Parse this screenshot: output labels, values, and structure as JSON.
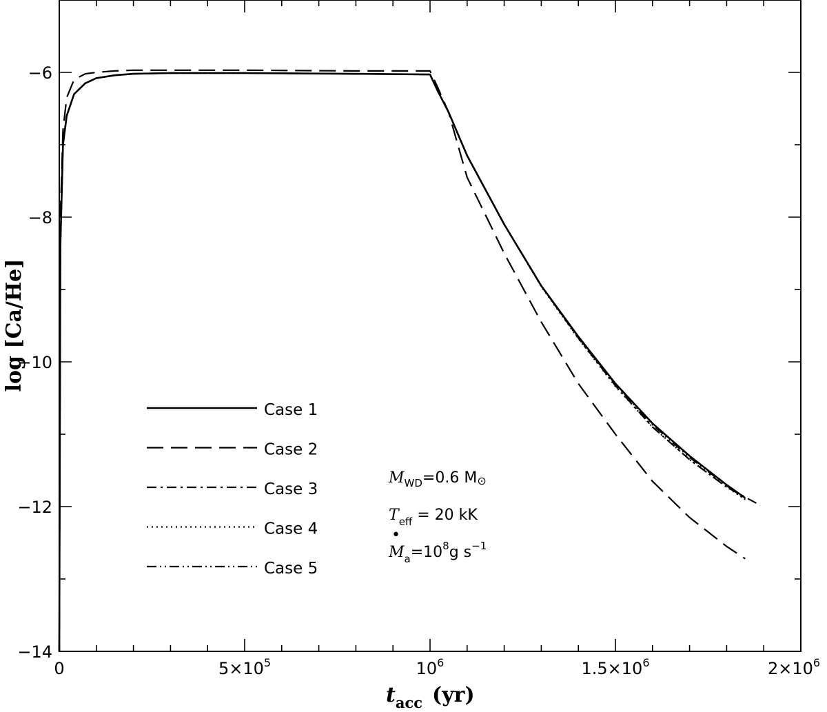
{
  "chart_data": {
    "type": "line",
    "xlabel": {
      "main": "t",
      "sub": "acc",
      "unit": "(yr)"
    },
    "ylabel": "log [Ca/He]",
    "xlim": [
      0,
      2000000
    ],
    "ylim": [
      -14,
      -5
    ],
    "x_ticks": [
      {
        "value": 0,
        "label": "0"
      },
      {
        "value": 500000,
        "label": "5×10",
        "sup": "5"
      },
      {
        "value": 1000000,
        "label": "10",
        "sup": "6"
      },
      {
        "value": 1500000,
        "label": "1.5×10",
        "sup": "6"
      },
      {
        "value": 2000000,
        "label": "2×10",
        "sup": "6"
      }
    ],
    "y_ticks": [
      {
        "value": -6,
        "label": "−6"
      },
      {
        "value": -8,
        "label": "−8"
      },
      {
        "value": -10,
        "label": "−10"
      },
      {
        "value": -12,
        "label": "−12"
      },
      {
        "value": -14,
        "label": "−14"
      }
    ],
    "grid": false,
    "legend_position": "lower-left",
    "series": [
      {
        "name": "Case 1",
        "style": "solid",
        "x": [
          0,
          3000,
          10000,
          20000,
          40000,
          70000,
          100000,
          150000,
          200000,
          300000,
          500000,
          800000,
          1000000,
          1020000,
          1050000,
          1100000,
          1200000,
          1300000,
          1400000,
          1500000,
          1600000,
          1700000,
          1800000,
          1850000
        ],
        "y": [
          -14,
          -8.4,
          -7.0,
          -6.6,
          -6.3,
          -6.15,
          -6.08,
          -6.04,
          -6.02,
          -6.01,
          -6.01,
          -6.02,
          -6.03,
          -6.25,
          -6.55,
          -7.15,
          -8.1,
          -8.95,
          -9.65,
          -10.3,
          -10.85,
          -11.3,
          -11.7,
          -11.88
        ]
      },
      {
        "name": "Case 2",
        "style": "dashed",
        "x": [
          0,
          3000,
          10000,
          20000,
          40000,
          70000,
          100000,
          150000,
          200000,
          300000,
          500000,
          800000,
          1000000,
          1020000,
          1050000,
          1100000,
          1200000,
          1300000,
          1400000,
          1500000,
          1600000,
          1700000,
          1800000,
          1850000
        ],
        "y": [
          -14,
          -8.0,
          -6.8,
          -6.35,
          -6.1,
          -6.02,
          -6.0,
          -5.98,
          -5.97,
          -5.97,
          -5.97,
          -5.98,
          -5.98,
          -6.2,
          -6.55,
          -7.45,
          -8.5,
          -9.45,
          -10.3,
          -11.0,
          -11.65,
          -12.15,
          -12.55,
          -12.72
        ]
      },
      {
        "name": "Case 3",
        "style": "dash-dot",
        "x": [
          0,
          3000,
          10000,
          20000,
          40000,
          70000,
          100000,
          150000,
          200000,
          300000,
          500000,
          800000,
          1000000,
          1020000,
          1050000,
          1100000,
          1200000,
          1300000,
          1400000,
          1500000,
          1600000,
          1700000,
          1800000,
          1890000
        ],
        "y": [
          -14,
          -8.4,
          -7.0,
          -6.6,
          -6.3,
          -6.15,
          -6.08,
          -6.04,
          -6.02,
          -6.01,
          -6.01,
          -6.02,
          -6.03,
          -6.25,
          -6.55,
          -7.15,
          -8.1,
          -8.95,
          -9.67,
          -10.33,
          -10.9,
          -11.35,
          -11.73,
          -11.98
        ]
      },
      {
        "name": "Case 4",
        "style": "dotted",
        "x": [
          0,
          3000,
          10000,
          20000,
          40000,
          70000,
          100000,
          150000,
          200000,
          300000,
          500000,
          800000,
          1000000,
          1020000,
          1050000,
          1100000,
          1200000,
          1300000,
          1400000,
          1500000,
          1600000,
          1700000,
          1800000,
          1850000
        ],
        "y": [
          -14,
          -8.4,
          -7.0,
          -6.6,
          -6.3,
          -6.15,
          -6.08,
          -6.04,
          -6.02,
          -6.01,
          -6.01,
          -6.02,
          -6.03,
          -6.25,
          -6.55,
          -7.15,
          -8.1,
          -8.96,
          -9.68,
          -10.34,
          -10.9,
          -11.35,
          -11.73,
          -11.9
        ]
      },
      {
        "name": "Case 5",
        "style": "dash-dot-dot",
        "x": [
          0,
          3000,
          10000,
          20000,
          40000,
          70000,
          100000,
          150000,
          200000,
          300000,
          500000,
          800000,
          1000000,
          1020000,
          1050000,
          1100000,
          1200000,
          1300000,
          1400000,
          1500000,
          1600000,
          1700000,
          1800000,
          1850000
        ],
        "y": [
          -14,
          -8.4,
          -7.0,
          -6.6,
          -6.3,
          -6.15,
          -6.08,
          -6.04,
          -6.02,
          -6.01,
          -6.01,
          -6.02,
          -6.03,
          -6.25,
          -6.55,
          -7.15,
          -8.1,
          -8.95,
          -9.66,
          -10.31,
          -10.87,
          -11.32,
          -11.71,
          -11.9
        ]
      }
    ],
    "annotations": {
      "line1": {
        "var": "M",
        "sub": "WD",
        "rest": "=0.6 M",
        "symbol": "⊙"
      },
      "line2": {
        "var": "T",
        "sub": "eff",
        "rest": " = 20 kK"
      },
      "line3": {
        "var": "M",
        "dot": "•",
        "sub": "a",
        "rest": "=10",
        "sup": "8",
        "rest2": "g s",
        "sup2": "−1"
      }
    }
  }
}
